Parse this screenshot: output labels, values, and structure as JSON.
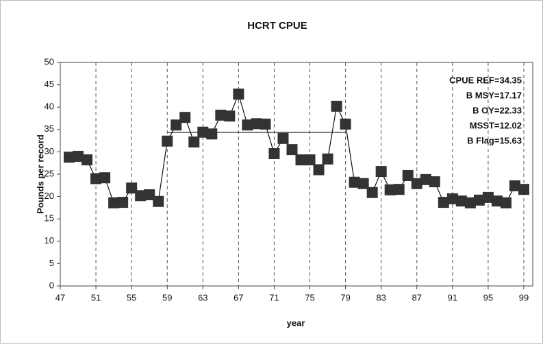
{
  "chart_data": {
    "type": "line",
    "title": "HCRT CPUE",
    "x_label": "year",
    "y_label": "Pounds per record",
    "x": [
      48,
      49,
      50,
      51,
      52,
      53,
      54,
      55,
      56,
      57,
      58,
      59,
      60,
      61,
      62,
      63,
      64,
      65,
      66,
      67,
      68,
      69,
      70,
      71,
      72,
      73,
      74,
      75,
      76,
      77,
      78,
      79,
      80,
      81,
      82,
      83,
      84,
      85,
      86,
      87,
      88,
      89,
      90,
      91,
      92,
      93,
      94,
      95,
      96,
      97,
      98,
      99
    ],
    "series": [
      {
        "name": "CPUE",
        "color": "#333333",
        "values": [
          28.8,
          29,
          28.2,
          24,
          24.2,
          18.6,
          18.7,
          21.9,
          20.2,
          20.4,
          18.9,
          32.4,
          36,
          37.7,
          32.2,
          34.4,
          34,
          38.2,
          38,
          42.9,
          36,
          36.3,
          36.2,
          29.6,
          33,
          30.5,
          28.2,
          28.2,
          26,
          28.4,
          40.2,
          36.2,
          23.2,
          22.9,
          20.9,
          25.6,
          21.5,
          21.6,
          24.7,
          22.9,
          23.8,
          23.3,
          18.7,
          19.5,
          19,
          18.6,
          19.2,
          19.8,
          19,
          18.6,
          22.4,
          21.6
        ]
      }
    ],
    "reference_line": {
      "value": 34.35,
      "x": [
        59,
        79
      ]
    },
    "annotations": [
      "CPUE REF=34.35",
      "B MSY=17.17",
      "B OY=22.33",
      "MSST=12.02",
      "B Flag=15.63"
    ],
    "xlim": [
      47,
      100
    ],
    "xticks": [
      47,
      51,
      55,
      59,
      63,
      67,
      71,
      75,
      79,
      83,
      87,
      91,
      95,
      99
    ],
    "ylim": [
      0,
      50
    ],
    "yticks": [
      0,
      5,
      10,
      15,
      20,
      25,
      30,
      35,
      40,
      45,
      50
    ],
    "xgrid": "dashed"
  }
}
